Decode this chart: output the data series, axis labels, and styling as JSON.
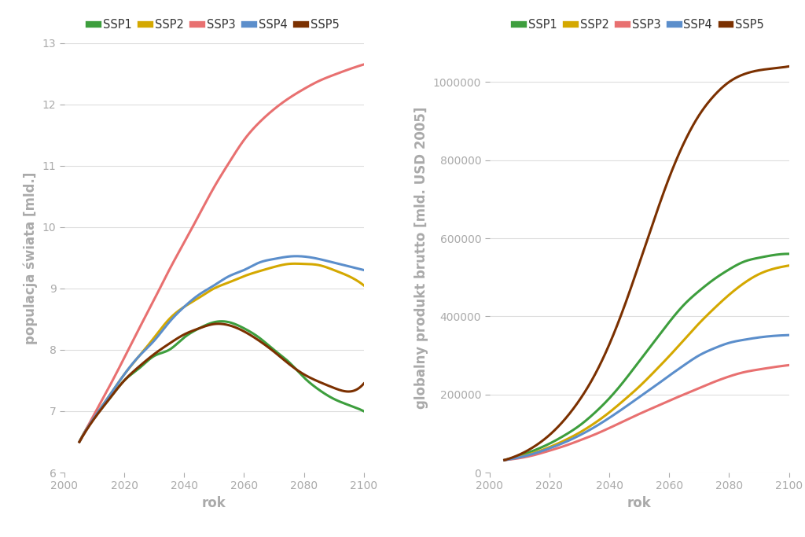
{
  "years": [
    2005,
    2010,
    2015,
    2020,
    2025,
    2030,
    2035,
    2040,
    2045,
    2050,
    2055,
    2060,
    2065,
    2070,
    2075,
    2080,
    2085,
    2090,
    2095,
    2100
  ],
  "pop": {
    "SSP1": [
      6.5,
      6.9,
      7.2,
      7.5,
      7.7,
      7.9,
      8.0,
      8.2,
      8.35,
      8.45,
      8.45,
      8.35,
      8.2,
      8.0,
      7.8,
      7.55,
      7.35,
      7.2,
      7.1,
      7.0
    ],
    "SSP2": [
      6.5,
      6.9,
      7.25,
      7.6,
      7.9,
      8.2,
      8.5,
      8.7,
      8.85,
      9.0,
      9.1,
      9.2,
      9.28,
      9.35,
      9.4,
      9.4,
      9.38,
      9.3,
      9.2,
      9.05
    ],
    "SSP3": [
      6.5,
      6.95,
      7.4,
      7.87,
      8.35,
      8.82,
      9.3,
      9.75,
      10.2,
      10.65,
      11.05,
      11.42,
      11.7,
      11.92,
      12.1,
      12.25,
      12.38,
      12.48,
      12.57,
      12.65
    ],
    "SSP4": [
      6.5,
      6.9,
      7.25,
      7.6,
      7.9,
      8.15,
      8.45,
      8.7,
      8.9,
      9.05,
      9.2,
      9.3,
      9.42,
      9.48,
      9.52,
      9.52,
      9.48,
      9.42,
      9.36,
      9.3
    ],
    "SSP5": [
      6.5,
      6.88,
      7.2,
      7.5,
      7.73,
      7.93,
      8.1,
      8.25,
      8.35,
      8.42,
      8.4,
      8.3,
      8.15,
      7.97,
      7.77,
      7.6,
      7.48,
      7.38,
      7.32,
      7.45
    ]
  },
  "gdp": {
    "SSP1": [
      32000,
      43000,
      57000,
      74000,
      95000,
      120000,
      152000,
      190000,
      235000,
      285000,
      335000,
      385000,
      430000,
      465000,
      495000,
      520000,
      540000,
      550000,
      557000,
      560000
    ],
    "SSP2": [
      32000,
      40000,
      51000,
      65000,
      82000,
      102000,
      126000,
      154000,
      186000,
      220000,
      258000,
      298000,
      340000,
      382000,
      420000,
      455000,
      485000,
      508000,
      522000,
      530000
    ],
    "SSP3": [
      32000,
      37000,
      45000,
      56000,
      68000,
      82000,
      97000,
      114000,
      132000,
      150000,
      167000,
      184000,
      200000,
      216000,
      232000,
      246000,
      257000,
      264000,
      270000,
      275000
    ],
    "SSP4": [
      32000,
      39000,
      49000,
      62000,
      77000,
      95000,
      116000,
      140000,
      166000,
      193000,
      220000,
      248000,
      275000,
      300000,
      318000,
      332000,
      340000,
      346000,
      350000,
      352000
    ],
    "SSP5": [
      32000,
      46000,
      67000,
      96000,
      135000,
      185000,
      248000,
      328000,
      425000,
      535000,
      648000,
      755000,
      845000,
      915000,
      965000,
      1000000,
      1020000,
      1030000,
      1035000,
      1040000
    ]
  },
  "colors": {
    "SSP1": "#3d9e3d",
    "SSP2": "#d4a800",
    "SSP3": "#e87070",
    "SSP4": "#5b8ecb",
    "SSP5": "#7b3000"
  },
  "pop_ylabel": "populacja świata [mld.]",
  "gdp_ylabel": "globalny produkt brutto [mld. USD 2005]",
  "xlabel": "rok",
  "pop_ylim": [
    6,
    13
  ],
  "gdp_ylim": [
    0,
    1100000
  ],
  "pop_yticks": [
    6,
    7,
    8,
    9,
    10,
    11,
    12,
    13
  ],
  "gdp_yticks": [
    0,
    200000,
    400000,
    600000,
    800000,
    1000000
  ],
  "xlim": [
    2000,
    2100
  ],
  "xticks": [
    2000,
    2020,
    2040,
    2060,
    2080,
    2100
  ],
  "label_color": "#aaaaaa",
  "tick_color": "#aaaaaa",
  "grid_color": "#dddddd",
  "bg_color": "#ffffff",
  "line_width": 2.2,
  "legend_fontsize": 10.5,
  "axis_label_fontsize": 12,
  "tick_fontsize": 10
}
